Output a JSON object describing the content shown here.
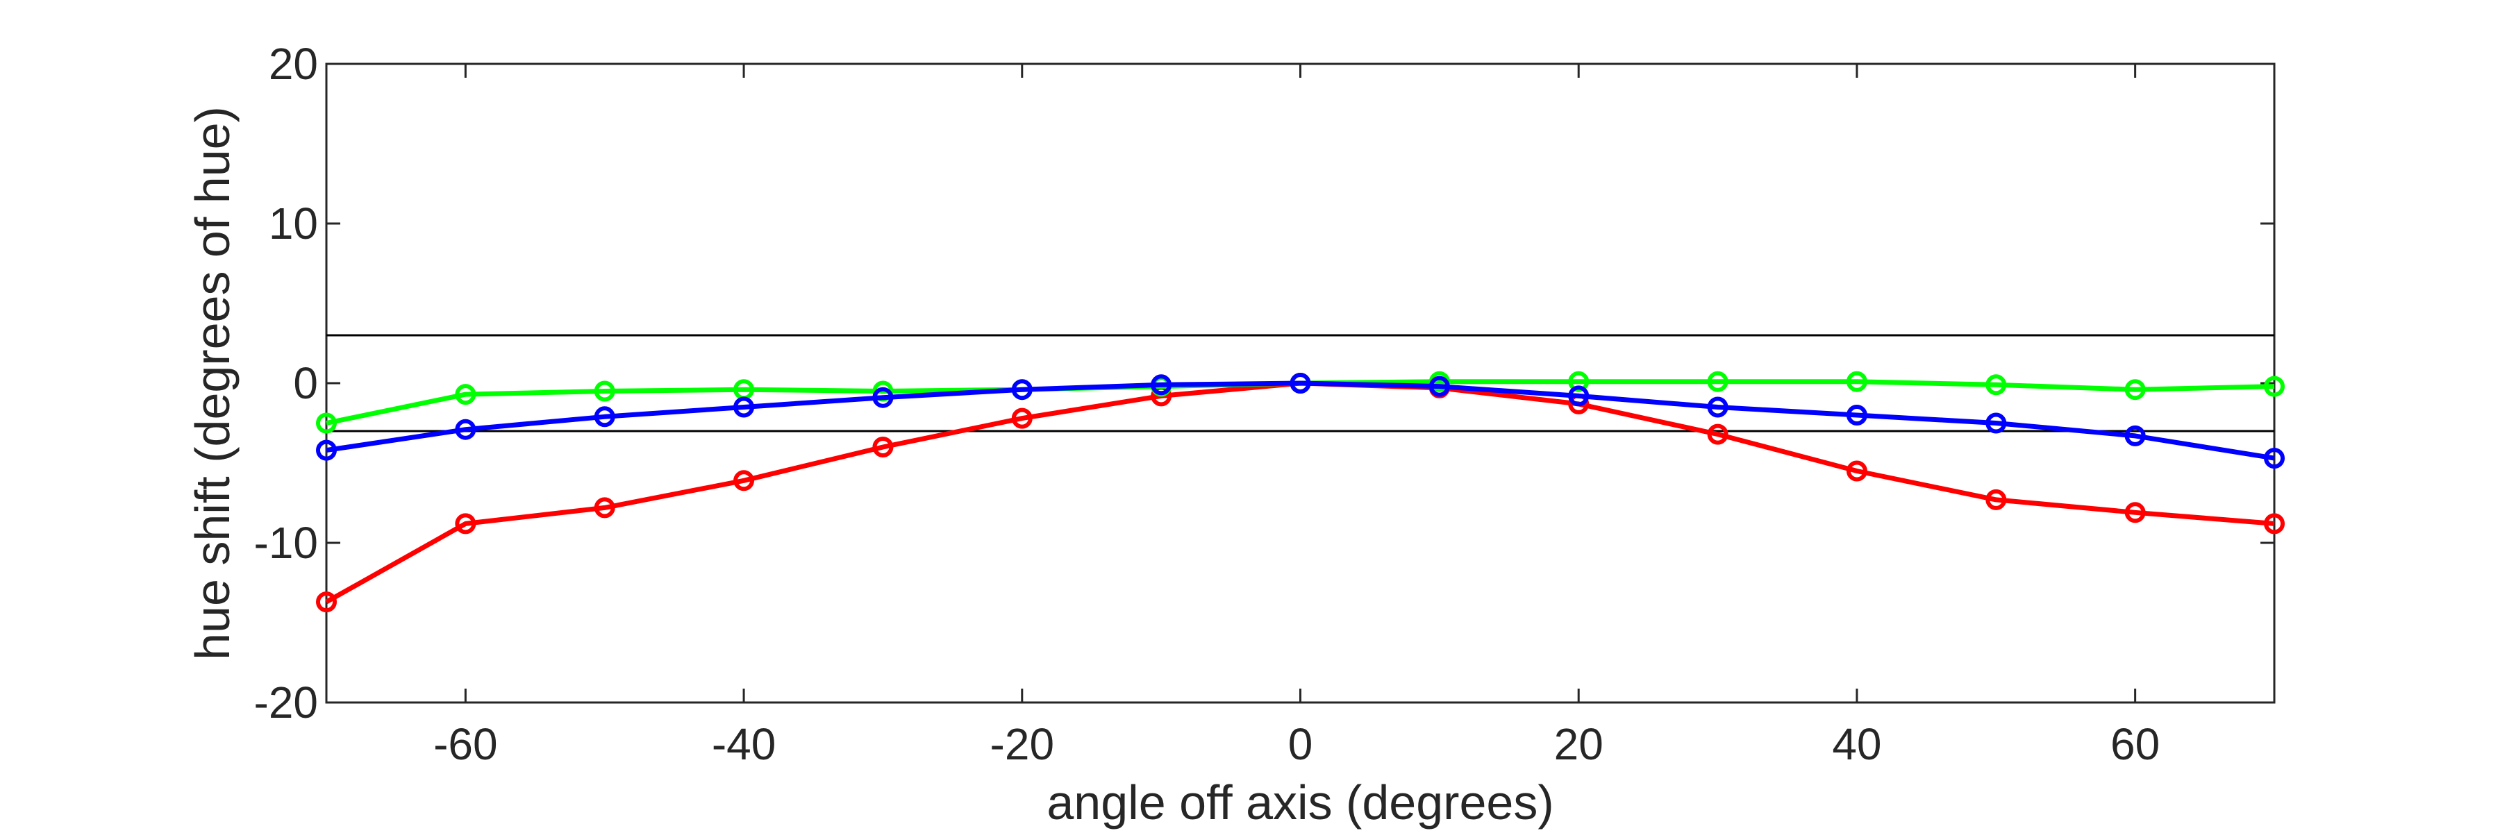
{
  "chart_data": {
    "type": "line",
    "xlabel": "angle off axis (degrees)",
    "ylabel": "hue shift (degrees of hue)",
    "xlim": [
      -70,
      70
    ],
    "ylim": [
      -20,
      20
    ],
    "xticks": [
      -60,
      -40,
      -20,
      0,
      20,
      40,
      60
    ],
    "yticks": [
      -20,
      -10,
      0,
      10,
      20
    ],
    "grid": false,
    "legend": "none",
    "reference_lines": [
      3,
      -3
    ],
    "x": [
      -70,
      -60,
      -50,
      -40,
      -30,
      -20,
      -10,
      0,
      10,
      20,
      30,
      40,
      50,
      60,
      70
    ],
    "series": [
      {
        "color": "#ff0000",
        "values": [
          -13.7,
          -8.8,
          -7.8,
          -6.1,
          -4.0,
          -2.2,
          -0.8,
          0.0,
          -0.3,
          -1.3,
          -3.2,
          -5.5,
          -7.3,
          -8.1,
          -8.8
        ]
      },
      {
        "color": "#00ff00",
        "values": [
          -2.5,
          -0.7,
          -0.5,
          -0.4,
          -0.5,
          -0.4,
          -0.2,
          0.0,
          0.1,
          0.1,
          0.1,
          0.1,
          -0.1,
          -0.4,
          -0.2
        ]
      },
      {
        "color": "#0000ff",
        "values": [
          -4.2,
          -2.9,
          -2.1,
          -1.5,
          -0.9,
          -0.4,
          -0.1,
          0.0,
          -0.2,
          -0.8,
          -1.5,
          -2.0,
          -2.5,
          -3.3,
          -4.7
        ]
      }
    ]
  }
}
